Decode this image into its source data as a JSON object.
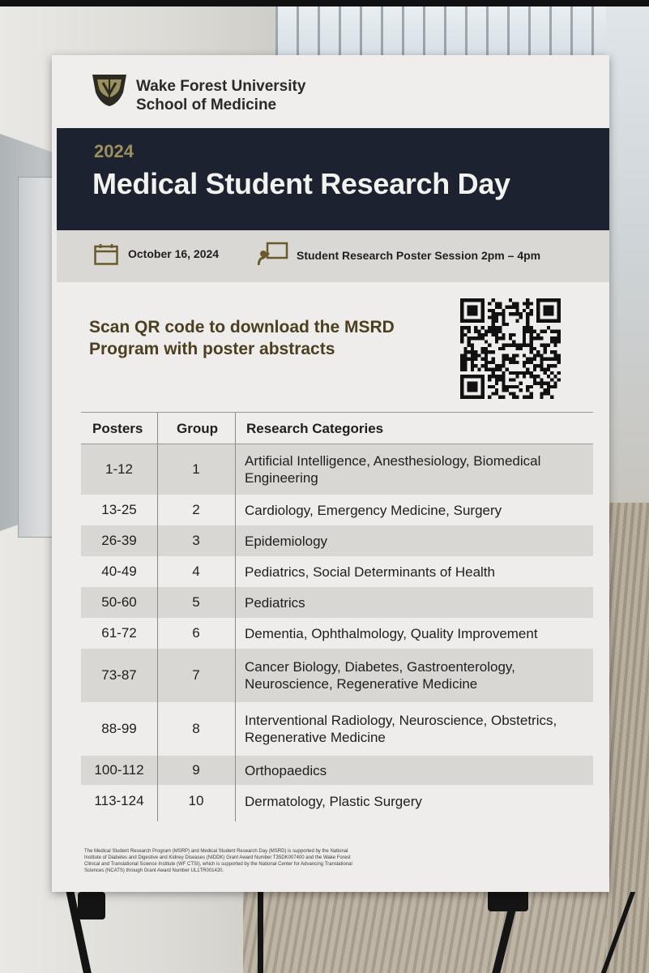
{
  "poster": {
    "logo_line1": "Wake Forest University",
    "logo_line2": "School of Medicine",
    "year": "2024",
    "title": "Medical Student Research Day",
    "date": "October 16, 2024",
    "session": "Student Research Poster Session 2pm – 4pm",
    "scan_line1": "Scan QR code to download the MSRD",
    "scan_line2": "Program with poster abstracts",
    "table": {
      "headers": [
        "Posters",
        "Group",
        "Research Categories"
      ],
      "rows": [
        {
          "posters": "1-12",
          "group": "1",
          "categories": "Artificial Intelligence, Anesthesiology, Biomedical Engineering"
        },
        {
          "posters": "13-25",
          "group": "2",
          "categories": "Cardiology, Emergency Medicine, Surgery"
        },
        {
          "posters": "26-39",
          "group": "3",
          "categories": "Epidemiology"
        },
        {
          "posters": "40-49",
          "group": "4",
          "categories": "Pediatrics, Social Determinants of Health"
        },
        {
          "posters": "50-60",
          "group": "5",
          "categories": "Pediatrics"
        },
        {
          "posters": "61-72",
          "group": "6",
          "categories": "Dementia, Ophthalmology, Quality Improvement"
        },
        {
          "posters": "73-87",
          "group": "7",
          "categories": "Cancer Biology, Diabetes, Gastroenterology, Neuroscience, Regenerative Medicine"
        },
        {
          "posters": "88-99",
          "group": "8",
          "categories": "Interventional Radiology, Neuroscience, Obstetrics, Regenerative Medicine"
        },
        {
          "posters": "100-112",
          "group": "9",
          "categories": "Orthopaedics"
        },
        {
          "posters": "113-124",
          "group": "10",
          "categories": "Dermatology, Plastic Surgery"
        }
      ]
    },
    "footnote": "The Medical Student Research Program (MSRP) and Medical Student Research Day (MSRD) is supported by the National Institute of Diabetes and Digestive and Kidney Diseases (NIDDK) Grant Award Number T35DK007400 and the Wake Forest Clinical and Translational Science Institute (WF CTSI), which is supported by the National Center for Advancing Translational Sciences (NCATS) through Grant Award Number UL1TR001420."
  },
  "colors": {
    "title_band": "#1c2230",
    "year_gold": "#9b8f5e",
    "scan_text": "#4b3f20",
    "shaded_row": "#d8d7d3"
  },
  "icons": [
    "wake-forest-shield-icon",
    "calendar-icon",
    "presenter-icon",
    "qr-code"
  ]
}
